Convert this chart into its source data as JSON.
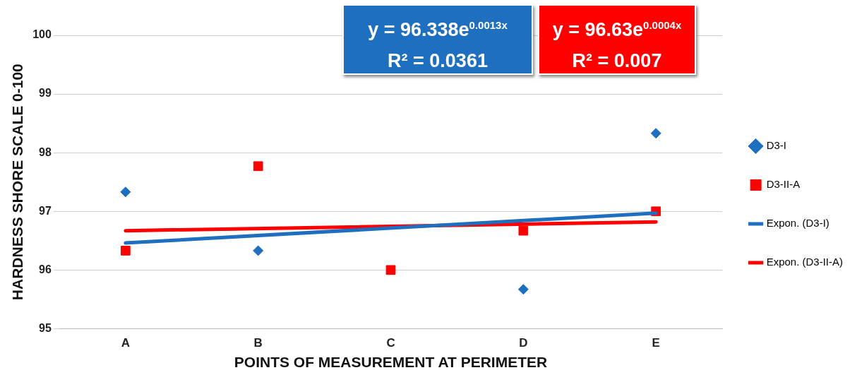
{
  "chart_data": {
    "type": "scatter",
    "xlabel": "POINTS OF MEASUREMENT AT PERIMETER",
    "ylabel": "HARDNESS SHORE SCALE 0-100",
    "categories": [
      "A",
      "B",
      "C",
      "D",
      "E"
    ],
    "series": [
      {
        "name": "D3-I",
        "color": "#1f6fc0",
        "marker": "diamond",
        "values": [
          97.33,
          96.33,
          null,
          95.67,
          98.33
        ]
      },
      {
        "name": "D3-II-A",
        "color": "#ff0000",
        "marker": "square",
        "values": [
          96.33,
          97.77,
          96.0,
          96.67,
          97.0
        ]
      },
      {
        "name": "Expon. (D3-I)",
        "color": "#1f6fc0",
        "type": "line",
        "marker": "none",
        "x": [
          "A",
          "E"
        ],
        "values": [
          96.46,
          96.97
        ]
      },
      {
        "name": "Expon. (D3-II-A)",
        "color": "#ff0000",
        "type": "line",
        "marker": "none",
        "x": [
          "A",
          "E"
        ],
        "values": [
          96.67,
          96.82
        ]
      }
    ],
    "ylim": [
      95,
      100
    ],
    "yticks": [
      95,
      96,
      97,
      98,
      99,
      100
    ],
    "grid": "y",
    "legend": "right",
    "annotations": [
      "y = 96.338e$^{0.0013x}$",
      "R² = 0.0361",
      "y = 96.63e$^{0.0004x}$",
      "R² = 0.007"
    ]
  }
}
